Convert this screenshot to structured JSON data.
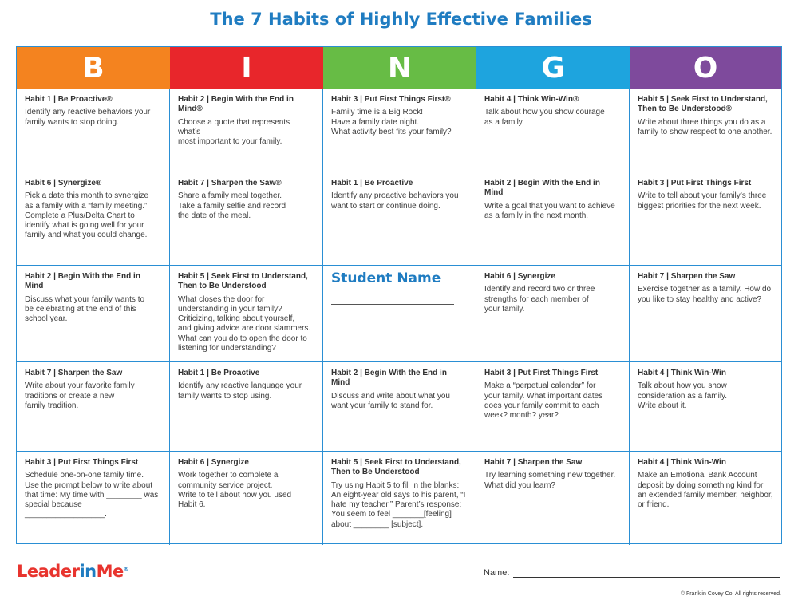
{
  "title": "The 7 Habits of Highly Effective Families",
  "columns": [
    {
      "letter": "B",
      "color": "#f4831f"
    },
    {
      "letter": "I",
      "color": "#e8262b"
    },
    {
      "letter": "N",
      "color": "#67bc45"
    },
    {
      "letter": "G",
      "color": "#1ea4de"
    },
    {
      "letter": "O",
      "color": "#7e4a9c"
    }
  ],
  "cells": [
    [
      {
        "habit": "Habit 1 | Be Proactive®",
        "text": "Identify any reactive behaviors your\nfamily wants to stop doing."
      },
      {
        "habit": "Habit 2 | Begin With the End in Mind®",
        "text": "Choose a quote that represents what’s\nmost important to your family."
      },
      {
        "habit": "Habit 3 | Put First Things First®",
        "text": "Family time is a Big Rock!\nHave a family date night.\nWhat activity best fits your family?"
      },
      {
        "habit": "Habit 4 | Think Win-Win®",
        "text": "Talk about how you show courage\nas a family."
      },
      {
        "habit": "Habit 5 | Seek First to Understand,\nThen to Be Understood®",
        "text": "Write about three things you do as a\nfamily to show respect to one another."
      }
    ],
    [
      {
        "habit": "Habit 6 | Synergize®",
        "text": "Pick a date this month to synergize\nas a family with a “family meeting.”\nComplete a Plus/Delta Chart to\nidentify what is going well for your\nfamily and what you could change."
      },
      {
        "habit": "Habit 7 | Sharpen the Saw®",
        "text": "Share a family meal together.\nTake a family selfie and record\nthe date of the meal."
      },
      {
        "habit": "Habit 1 | Be Proactive",
        "text": "Identify any proactive behaviors you\nwant to start or continue doing."
      },
      {
        "habit": "Habit 2 | Begin With the End in Mind",
        "text": "Write a goal that you want to achieve\nas a family in the next month."
      },
      {
        "habit": "Habit 3 | Put First Things First",
        "text": "Write to tell about your family’s three\nbiggest priorities for the next week."
      }
    ],
    [
      {
        "habit": "Habit 2 | Begin With the End in Mind",
        "text": "Discuss what your family wants to\nbe celebrating at the end of this\nschool year."
      },
      {
        "habit": "Habit 5 | Seek First to Understand,\nThen to Be Understood",
        "text": "What closes the door for\nunderstanding in your family?\nCriticizing, talking about yourself,\nand giving advice are door slammers.\nWhat can you do to open the door to\nlistening for understanding?"
      },
      {
        "free": true,
        "label": "Student Name"
      },
      {
        "habit": "Habit 6 | Synergize",
        "text": "Identify and record two or three\nstrengths for each member of\nyour family."
      },
      {
        "habit": "Habit 7 | Sharpen the Saw",
        "text": "Exercise together as a family. How do\nyou like to stay healthy and active?"
      }
    ],
    [
      {
        "habit": "Habit 7 | Sharpen the Saw",
        "text": "Write about your favorite family\ntraditions or create a new\nfamily tradition."
      },
      {
        "habit": "Habit 1 | Be Proactive",
        "text": "Identify any reactive language your\nfamily wants to stop using."
      },
      {
        "habit": "Habit 2 | Begin With the End in Mind",
        "text": "Discuss and write about what you\nwant your family to stand for."
      },
      {
        "habit": "Habit 3 | Put First Things First",
        "text": "Make a “perpetual calendar” for\nyour family. What important dates\ndoes your family commit to each\nweek? month? year?"
      },
      {
        "habit": "Habit 4 | Think Win-Win",
        "text": "Talk about how you show\nconsideration as a family.\nWrite about it."
      }
    ],
    [
      {
        "habit": "Habit 3 | Put First Things First",
        "text": "Schedule one-on-one family time.\nUse the prompt below to write about\nthat time:  My time with ________ was\nspecial because __________________."
      },
      {
        "habit": "Habit 6 | Synergize",
        "text": "Work together to complete a\ncommunity service project.\nWrite to tell about how you used\nHabit 6."
      },
      {
        "habit": "Habit 5 | Seek First to Understand,\nThen to Be Understood",
        "text": "Try using Habit 5 to fill in the blanks:\nAn eight-year old says to his parent, “I\nhate my teacher.” Parent’s response:\nYou seem to feel _______[feeling]\nabout ________ [subject]."
      },
      {
        "habit": "Habit 7 | Sharpen the Saw",
        "text": "Try learning something new together.\nWhat did you learn?"
      },
      {
        "habit": "Habit 4 | Think Win-Win",
        "text": "Make an Emotional Bank Account\ndeposit by doing something kind for\nan extended family member, neighbor,\nor friend."
      }
    ]
  ],
  "logo": {
    "part1": "Leader",
    "part2": "in",
    "part3": "Me",
    "reg": "®"
  },
  "name_label": "Name:",
  "copyright": "© Franklin Covey Co. All rights reserved."
}
